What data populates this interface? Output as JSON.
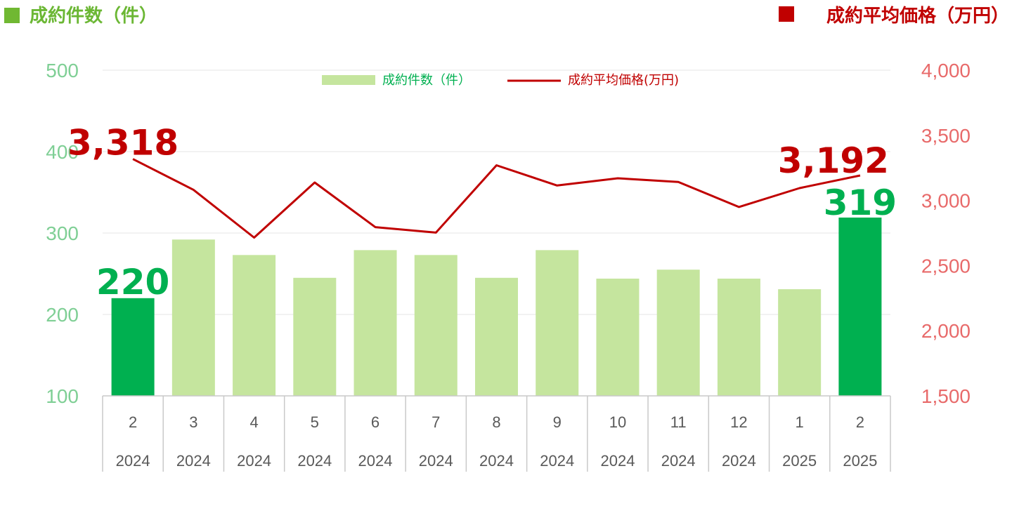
{
  "header": {
    "left_title": "成約件数（件）",
    "right_title": "成約平均価格（万円）"
  },
  "legend": {
    "bars_label": "成約件数（件）",
    "line_label": "成約平均価格(万円)"
  },
  "colors": {
    "bar_light": "#c5e59e",
    "bar_highlight": "#00b050",
    "line": "#c00000",
    "left_axis": "#7fcf95",
    "right_axis": "#e86a6a",
    "header_left_square": "#70b832",
    "header_left_text": "#6bb734",
    "header_right_square": "#c00000",
    "header_right_text": "#c00000",
    "gridline": "#e6e6e6",
    "axis_border": "#c9c9c9"
  },
  "chart_data": {
    "type": "bar",
    "categories": [
      "2",
      "3",
      "4",
      "5",
      "6",
      "7",
      "8",
      "9",
      "10",
      "11",
      "12",
      "1",
      "2"
    ],
    "years": [
      "2024",
      "2024",
      "2024",
      "2024",
      "2024",
      "2024",
      "2024",
      "2024",
      "2024",
      "2024",
      "2024",
      "2025",
      "2025"
    ],
    "series": [
      {
        "name": "成約件数（件）",
        "type": "bar",
        "axis": "left",
        "values": [
          220,
          292,
          273,
          245,
          279,
          273,
          245,
          279,
          244,
          255,
          244,
          231,
          319
        ],
        "highlight_indices": [
          0,
          12
        ]
      },
      {
        "name": "成約平均価格(万円)",
        "type": "line",
        "axis": "right",
        "values": [
          3318,
          3082,
          2715,
          3138,
          2795,
          2753,
          3270,
          3115,
          3170,
          3142,
          2950,
          3095,
          3192
        ]
      }
    ],
    "left_axis": {
      "ylim": [
        100,
        500
      ],
      "ticks": [
        "100",
        "200",
        "300",
        "400",
        "500"
      ]
    },
    "right_axis": {
      "ylim": [
        1500,
        4000
      ],
      "ticks": [
        "1,500",
        "2,000",
        "2,500",
        "3,000",
        "3,500",
        "4,000"
      ]
    },
    "annotations": {
      "bar_first": "220",
      "bar_last": "319",
      "line_first": "3,318",
      "line_last": "3,192"
    },
    "grid": true,
    "legend_position": "top-center"
  }
}
